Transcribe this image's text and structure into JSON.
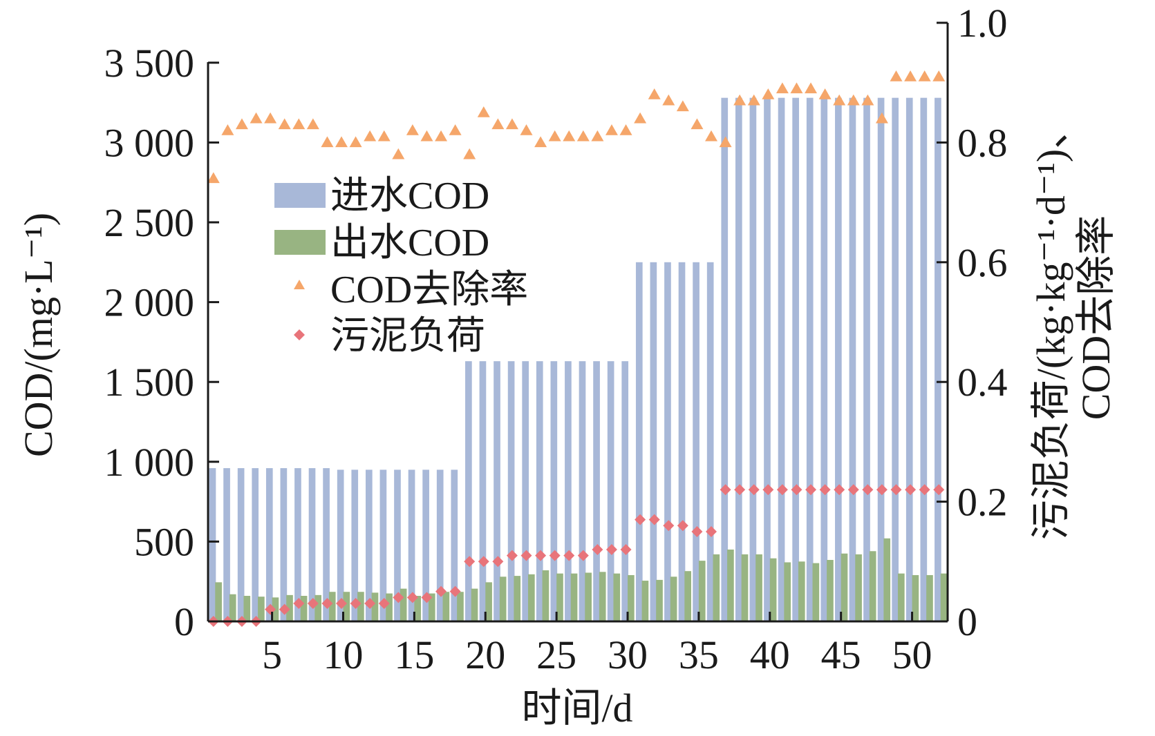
{
  "chart_data": {
    "type": "bar+scatter",
    "xlabel": "时间/d",
    "ylabel_left": "COD/(mg·L⁻¹)",
    "ylabel_right_line1": "污泥负荷/(kg·kg⁻¹·d⁻¹)、",
    "ylabel_right_line2": "COD去除率",
    "x_days": [
      1,
      2,
      3,
      4,
      5,
      6,
      7,
      8,
      9,
      10,
      11,
      12,
      13,
      14,
      15,
      16,
      17,
      18,
      19,
      20,
      21,
      22,
      23,
      24,
      25,
      26,
      27,
      28,
      29,
      30,
      31,
      32,
      33,
      34,
      35,
      36,
      37,
      38,
      39,
      40,
      41,
      42,
      43,
      44,
      45,
      46,
      47,
      48,
      49,
      50,
      51,
      52
    ],
    "x_ticks": [
      5,
      10,
      15,
      20,
      25,
      30,
      35,
      40,
      45,
      50
    ],
    "x_tick_labels": [
      "5",
      "10",
      "15",
      "20",
      "25",
      "30",
      "35",
      "40",
      "45",
      "50"
    ],
    "ylim_left": [
      0,
      3750
    ],
    "yticks_left": [
      0,
      500,
      1000,
      1500,
      2000,
      2500,
      3000,
      3500
    ],
    "ytick_labels_left": [
      "0",
      "500",
      "1 000",
      "1 500",
      "2 000",
      "2 500",
      "3 000",
      "3 500"
    ],
    "ylim_right": [
      0,
      1.0
    ],
    "yticks_right": [
      0,
      0.2,
      0.4,
      0.6,
      0.8,
      1.0
    ],
    "ytick_labels_right": [
      "0",
      "0.2",
      "0.4",
      "0.6",
      "0.8",
      "1.0"
    ],
    "series": [
      {
        "name": "进水COD",
        "kind": "bar",
        "axis": "left",
        "color": "#a8b8d8",
        "values": [
          960,
          960,
          960,
          960,
          960,
          960,
          960,
          960,
          960,
          950,
          950,
          950,
          950,
          950,
          950,
          950,
          950,
          950,
          1630,
          1630,
          1630,
          1630,
          1630,
          1630,
          1630,
          1630,
          1630,
          1630,
          1630,
          1630,
          2250,
          2250,
          2250,
          2250,
          2250,
          2250,
          3280,
          3280,
          3280,
          3280,
          3280,
          3280,
          3280,
          3280,
          3280,
          3280,
          3280,
          3280,
          3280,
          3280,
          3280,
          3280
        ]
      },
      {
        "name": "出水COD",
        "kind": "bar",
        "axis": "left",
        "color": "#98b482",
        "values": [
          245,
          170,
          160,
          155,
          150,
          165,
          160,
          165,
          185,
          185,
          185,
          180,
          175,
          205,
          160,
          175,
          185,
          185,
          205,
          245,
          280,
          285,
          295,
          320,
          300,
          300,
          305,
          310,
          300,
          290,
          255,
          260,
          280,
          315,
          380,
          420,
          450,
          420,
          420,
          395,
          370,
          375,
          365,
          385,
          425,
          420,
          440,
          520,
          300,
          290,
          290,
          300
        ]
      },
      {
        "name": "COD去除率",
        "kind": "scatter",
        "marker": "triangle",
        "axis": "right",
        "color": "#f5a66a",
        "values": [
          0.74,
          0.82,
          0.83,
          0.84,
          0.84,
          0.83,
          0.83,
          0.83,
          0.8,
          0.8,
          0.8,
          0.81,
          0.81,
          0.78,
          0.82,
          0.81,
          0.81,
          0.82,
          0.78,
          0.85,
          0.83,
          0.83,
          0.82,
          0.8,
          0.81,
          0.81,
          0.81,
          0.81,
          0.82,
          0.82,
          0.84,
          0.88,
          0.87,
          0.86,
          0.83,
          0.81,
          0.8,
          0.87,
          0.87,
          0.88,
          0.89,
          0.89,
          0.89,
          0.88,
          0.87,
          0.87,
          0.87,
          0.84,
          0.91,
          0.91,
          0.91,
          0.91
        ]
      },
      {
        "name": "污泥负荷",
        "kind": "scatter",
        "marker": "diamond",
        "axis": "right",
        "color": "#e8747a",
        "values": [
          0.0,
          0.0,
          0.0,
          0.0,
          0.02,
          0.02,
          0.03,
          0.03,
          0.03,
          0.03,
          0.03,
          0.03,
          0.03,
          0.04,
          0.04,
          0.04,
          0.05,
          0.05,
          0.1,
          0.1,
          0.1,
          0.11,
          0.11,
          0.11,
          0.11,
          0.11,
          0.11,
          0.12,
          0.12,
          0.12,
          0.17,
          0.17,
          0.16,
          0.16,
          0.15,
          0.15,
          0.22,
          0.22,
          0.22,
          0.22,
          0.22,
          0.22,
          0.22,
          0.22,
          0.22,
          0.22,
          0.22,
          0.22,
          0.22,
          0.22,
          0.22,
          0.22
        ]
      }
    ],
    "legend": {
      "placement": "upper-left-inside",
      "entries": [
        "进水COD",
        "出水COD",
        "COD去除率",
        "污泥负荷"
      ]
    }
  }
}
